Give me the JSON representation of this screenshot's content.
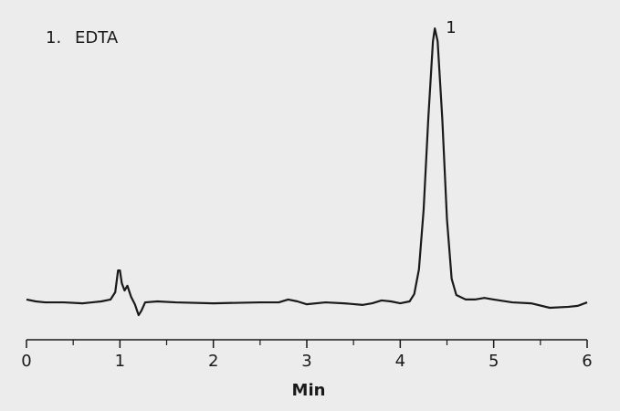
{
  "chart_data": {
    "type": "line",
    "annotations": [
      "1.",
      "EDTA"
    ],
    "peak_label": "1",
    "xlabel": "Min",
    "xlim": [
      0,
      6
    ],
    "xticks": [
      0,
      1,
      2,
      3,
      4,
      5,
      6
    ],
    "ylim": [
      0,
      100
    ],
    "color": "#1a1a1a",
    "x": [
      0,
      0.1,
      0.2,
      0.4,
      0.6,
      0.7,
      0.8,
      0.9,
      0.95,
      0.98,
      1.0,
      1.02,
      1.05,
      1.08,
      1.12,
      1.16,
      1.2,
      1.23,
      1.27,
      1.4,
      1.6,
      2.0,
      2.5,
      2.7,
      2.8,
      2.9,
      3.0,
      3.2,
      3.4,
      3.6,
      3.7,
      3.8,
      3.9,
      4.0,
      4.1,
      4.15,
      4.2,
      4.25,
      4.3,
      4.35,
      4.37,
      4.4,
      4.45,
      4.5,
      4.55,
      4.6,
      4.7,
      4.8,
      4.9,
      5.0,
      5.2,
      5.4,
      5.6,
      5.8,
      5.9,
      6.0
    ],
    "values": [
      12.6,
      12,
      11.7,
      11.7,
      11.4,
      11.7,
      12,
      12.6,
      14.9,
      21.7,
      21.7,
      17.7,
      15.4,
      16.9,
      13.4,
      11.1,
      7.7,
      9.1,
      11.7,
      12,
      11.7,
      11.4,
      11.7,
      11.7,
      12.6,
      12,
      11.1,
      11.7,
      11.4,
      10.9,
      11.4,
      12.3,
      12,
      11.4,
      12,
      14.3,
      22,
      40.6,
      69.1,
      93.4,
      97.4,
      93.4,
      69.1,
      37.7,
      19.1,
      14,
      12.6,
      12.6,
      13.1,
      12.6,
      11.7,
      11.4,
      10,
      10.3,
      10.6,
      11.7
    ]
  }
}
